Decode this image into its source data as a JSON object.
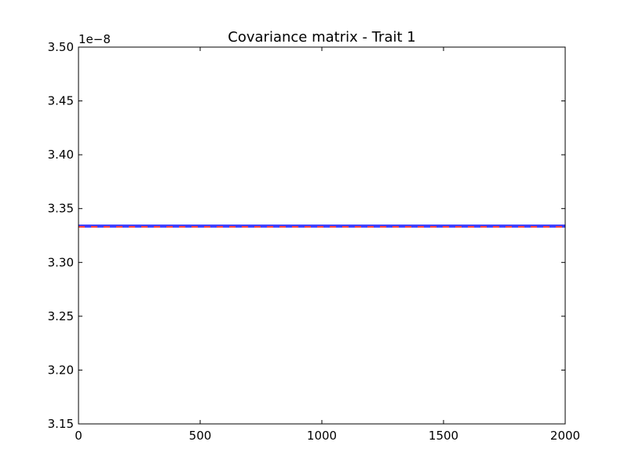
{
  "chart_data": {
    "type": "line",
    "title": "Covariance matrix - Trait 1",
    "xlabel": "",
    "ylabel": "",
    "xlim": [
      0,
      2000
    ],
    "ylim": [
      3.15e-08,
      3.5e-08
    ],
    "y_offset_label": "1e−8",
    "xticks": [
      0,
      500,
      1000,
      1500,
      2000
    ],
    "xtick_labels": [
      "0",
      "500",
      "1000",
      "1500",
      "2000"
    ],
    "yticks": [
      3.15,
      3.2,
      3.25,
      3.3,
      3.35,
      3.4,
      3.45,
      3.5
    ],
    "ytick_labels": [
      "3.15",
      "3.20",
      "3.25",
      "3.30",
      "3.35",
      "3.40",
      "3.45",
      "3.50"
    ],
    "grid": false,
    "series": [
      {
        "x": [
          0,
          2000
        ],
        "y": [
          3.3345e-08,
          3.3345e-08
        ],
        "color": "#0000ff",
        "style": "solid"
      },
      {
        "x": [
          0,
          2000
        ],
        "y": [
          3.333e-08,
          3.333e-08
        ],
        "color": "#ff0000",
        "style": "dashed"
      },
      {
        "x": [
          0,
          2000
        ],
        "y": [
          3.333e-08,
          3.333e-08
        ],
        "color": "#0000ff",
        "style": "dashed"
      }
    ]
  }
}
